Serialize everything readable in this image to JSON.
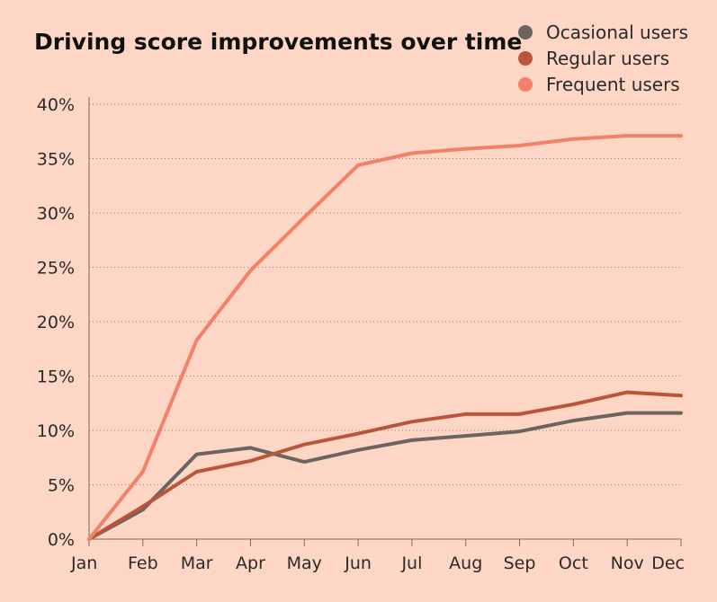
{
  "chart_data": {
    "type": "line",
    "title": "Driving score improvements over time",
    "xlabel": "",
    "ylabel": "",
    "categories": [
      "Jan",
      "Feb",
      "Mar",
      "Apr",
      "May",
      "Jun",
      "Jul",
      "Aug",
      "Sep",
      "Oct",
      "Nov",
      "Dec"
    ],
    "y_ticks": [
      "0%",
      "5%",
      "10%",
      "15%",
      "20%",
      "25%",
      "30%",
      "35%",
      "40%"
    ],
    "ylim": [
      0,
      40
    ],
    "y_unit": "%",
    "grid": "horizontal dotted",
    "legend_position": "top-right",
    "series": [
      {
        "name": "Ocasional users",
        "color": "#6B6461",
        "values": [
          0,
          2.7,
          7.8,
          8.4,
          7.1,
          8.2,
          9.1,
          9.5,
          9.9,
          10.9,
          11.6,
          11.6
        ]
      },
      {
        "name": "Regular users",
        "color": "#B9553B",
        "values": [
          0,
          3.0,
          6.2,
          7.2,
          8.7,
          9.7,
          10.8,
          11.5,
          11.5,
          12.4,
          13.5,
          13.2
        ]
      },
      {
        "name": "Frequent users",
        "color": "#F2806A",
        "values": [
          0,
          6.2,
          18.3,
          24.7,
          29.6,
          34.4,
          35.5,
          35.9,
          36.2,
          36.8,
          37.1,
          37.1
        ]
      }
    ]
  }
}
